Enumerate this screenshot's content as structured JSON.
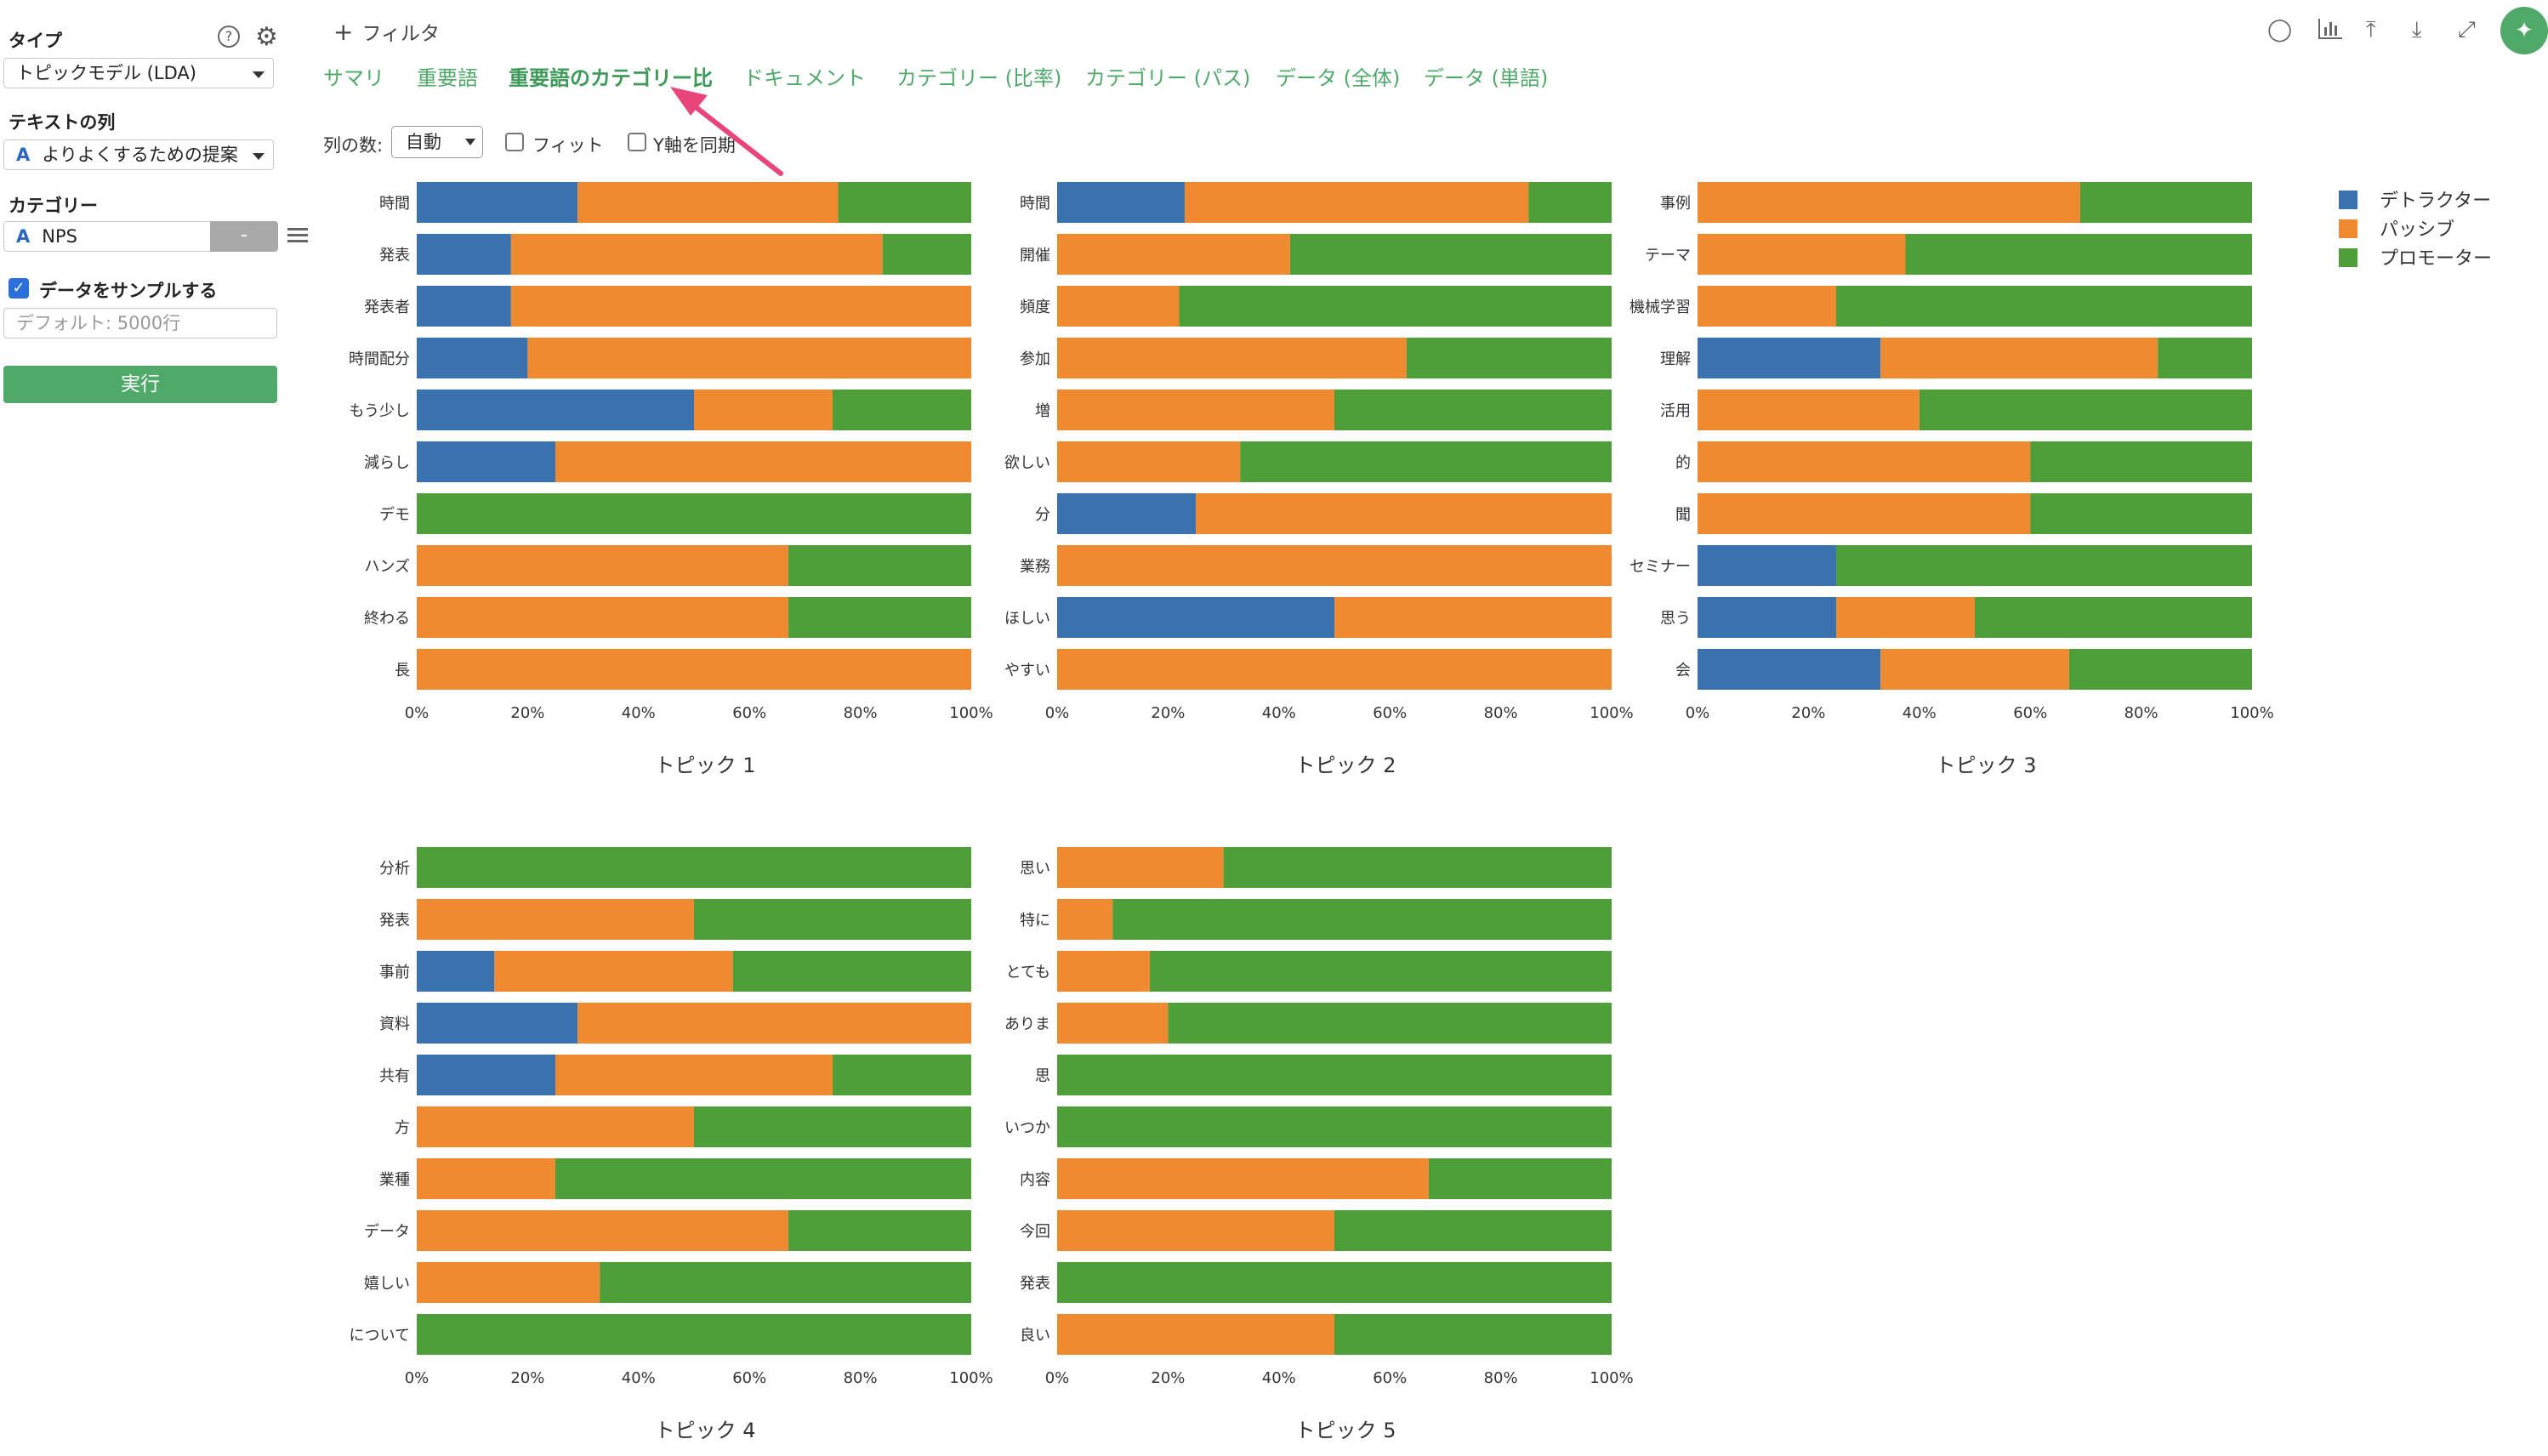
{
  "sidebar": {
    "type_label": "タイプ",
    "type_value": "トピックモデル (LDA)",
    "text_col_label": "テキストの列",
    "text_col_value": "よりよくするための提案",
    "category_label": "カテゴリー",
    "category_value": "NPS",
    "category_remove": "-",
    "sample_label": "データをサンプルする",
    "sample_placeholder": "デフォルト: 5000行",
    "run_label": "実行",
    "col_icon": "A"
  },
  "header": {
    "filter_label": "フィルタ",
    "tabs": [
      "サマリ",
      "重要語",
      "重要語のカテゴリー比",
      "ドキュメント",
      "カテゴリー (比率)",
      "カテゴリー (パス)",
      "データ (全体)",
      "データ (単語)"
    ],
    "active_tab": 2
  },
  "options": {
    "columns_label": "列の数:",
    "columns_value": "自動",
    "fit_label": "フィット",
    "sync_y_label": "Y軸を同期"
  },
  "colors": {
    "detractor": "#3a72b0",
    "passive": "#ef8a31",
    "promoter": "#4e9f3a",
    "accent": "#4faa6a",
    "arrow": "#e8457a"
  },
  "legend": [
    "デトラクター",
    "パッシブ",
    "プロモーター"
  ],
  "chart_data": [
    {
      "type": "bar",
      "title": "トピック 1",
      "x_ticks": [
        "0%",
        "20%",
        "40%",
        "60%",
        "80%",
        "100%"
      ],
      "categories": [
        "時間",
        "発表",
        "発表者",
        "時間配分",
        "もう少し",
        "減らし",
        "デモ",
        "ハンズ",
        "終わる",
        "長"
      ],
      "series": [
        {
          "name": "デトラクター",
          "values": [
            0.29,
            0.17,
            0.17,
            0.2,
            0.5,
            0.25,
            0,
            0,
            0,
            0
          ]
        },
        {
          "name": "パッシブ",
          "values": [
            0.47,
            0.67,
            0.83,
            0.8,
            0.25,
            0.75,
            0,
            0.67,
            0.67,
            1.0
          ]
        },
        {
          "name": "プロモーター",
          "values": [
            0.24,
            0.16,
            0,
            0,
            0.25,
            0,
            1.0,
            0.33,
            0.33,
            0
          ]
        }
      ]
    },
    {
      "type": "bar",
      "title": "トピック 2",
      "x_ticks": [
        "0%",
        "20%",
        "40%",
        "60%",
        "80%",
        "100%"
      ],
      "categories": [
        "時間",
        "開催",
        "頻度",
        "参加",
        "増",
        "欲しい",
        "分",
        "業務",
        "ほしい",
        "やすい"
      ],
      "series": [
        {
          "name": "デトラクター",
          "values": [
            0.23,
            0,
            0,
            0,
            0,
            0,
            0.25,
            0,
            0.5,
            0
          ]
        },
        {
          "name": "パッシブ",
          "values": [
            0.62,
            0.42,
            0.22,
            0.63,
            0.5,
            0.33,
            0.75,
            1.0,
            0.5,
            1.0
          ]
        },
        {
          "name": "プロモーター",
          "values": [
            0.15,
            0.58,
            0.78,
            0.37,
            0.5,
            0.67,
            0,
            0,
            0,
            0
          ]
        }
      ]
    },
    {
      "type": "bar",
      "title": "トピック 3",
      "x_ticks": [
        "0%",
        "20%",
        "40%",
        "60%",
        "80%",
        "100%"
      ],
      "categories": [
        "事例",
        "テーマ",
        "機械学習",
        "理解",
        "活用",
        "的",
        "聞",
        "セミナー",
        "思う",
        "会"
      ],
      "series": [
        {
          "name": "デトラクター",
          "values": [
            0,
            0,
            0,
            0.33,
            0,
            0,
            0,
            0.25,
            0.25,
            0.33
          ]
        },
        {
          "name": "パッシブ",
          "values": [
            0.69,
            0.375,
            0.25,
            0.5,
            0.4,
            0.6,
            0.6,
            0,
            0.25,
            0.34
          ]
        },
        {
          "name": "プロモーター",
          "values": [
            0.31,
            0.625,
            0.75,
            0.17,
            0.6,
            0.4,
            0.4,
            0.75,
            0.5,
            0.33
          ]
        }
      ]
    },
    {
      "type": "bar",
      "title": "トピック 4",
      "x_ticks": [
        "0%",
        "20%",
        "40%",
        "60%",
        "80%",
        "100%"
      ],
      "categories": [
        "分析",
        "発表",
        "事前",
        "資料",
        "共有",
        "方",
        "業種",
        "データ",
        "嬉しい",
        "について"
      ],
      "series": [
        {
          "name": "デトラクター",
          "values": [
            0,
            0,
            0.14,
            0.29,
            0.25,
            0,
            0,
            0,
            0,
            0
          ]
        },
        {
          "name": "パッシブ",
          "values": [
            0,
            0.5,
            0.43,
            0.71,
            0.5,
            0.5,
            0.25,
            0.67,
            0.33,
            0
          ]
        },
        {
          "name": "プロモーター",
          "values": [
            1.0,
            0.5,
            0.43,
            0,
            0.25,
            0.5,
            0.75,
            0.33,
            0.67,
            1.0
          ]
        }
      ]
    },
    {
      "type": "bar",
      "title": "トピック 5",
      "x_ticks": [
        "0%",
        "20%",
        "40%",
        "60%",
        "80%",
        "100%"
      ],
      "categories": [
        "思い",
        "特に",
        "とても",
        "ありま",
        "思",
        "いつか",
        "内容",
        "今回",
        "発表",
        "良い"
      ],
      "series": [
        {
          "name": "デトラクター",
          "values": [
            0,
            0,
            0,
            0,
            0,
            0,
            0,
            0,
            0,
            0
          ]
        },
        {
          "name": "パッシブ",
          "values": [
            0.3,
            0.1,
            0.167,
            0.2,
            0,
            0,
            0.67,
            0.5,
            0,
            0.5
          ]
        },
        {
          "name": "プロモーター",
          "values": [
            0.7,
            0.9,
            0.833,
            0.8,
            1.0,
            1.0,
            0.33,
            0.5,
            1.0,
            0.5
          ]
        }
      ]
    }
  ]
}
